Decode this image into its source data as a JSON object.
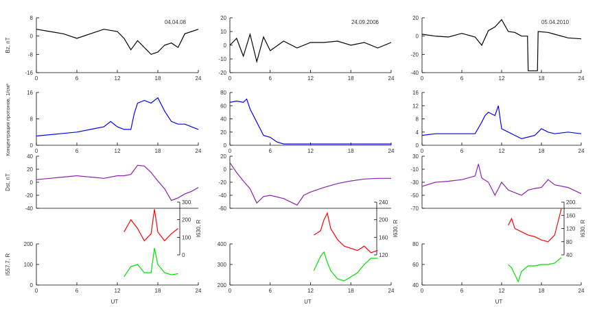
{
  "x_ticks": [
    "0",
    "6",
    "12",
    "18",
    "24"
  ],
  "xlabel": "UT",
  "ylabels": {
    "bz": "Bz, nT",
    "density": "Концентрация протонов, 1/см³",
    "dst": "Dst, nT",
    "i5577": "I557.7, R",
    "i630": "I630, R"
  },
  "colors": {
    "bz": "#000000",
    "density": "#0000ff",
    "dst": "#8b1fb0",
    "i630": "#ff0000",
    "i5577": "#00e000"
  },
  "chart_data": [
    {
      "type": "line",
      "date": "04.04.08",
      "xlim": [
        0,
        24
      ],
      "panels": {
        "bz": {
          "ylim": [
            -16,
            8
          ],
          "ticks": [
            "8",
            "0",
            "-8",
            "-16"
          ],
          "x": [
            0,
            2,
            4,
            6,
            8,
            10,
            12,
            13,
            14,
            15,
            16,
            17,
            18,
            19,
            20,
            21,
            22,
            23,
            24
          ],
          "values": [
            3,
            2,
            1,
            -1,
            1,
            3,
            2,
            -1,
            -6,
            -2,
            -5,
            -8,
            -7,
            -4,
            -3,
            -5,
            1,
            2,
            3
          ]
        },
        "density": {
          "ylim": [
            0,
            20
          ],
          "ticks": [
            "16",
            "8",
            "0"
          ],
          "x": [
            0,
            2,
            4,
            6,
            8,
            10,
            11,
            12,
            13,
            14,
            14.5,
            15,
            16,
            17,
            18,
            19,
            20,
            21,
            22,
            23,
            24
          ],
          "values": [
            3.5,
            4,
            4.5,
            5,
            6,
            7,
            9,
            7,
            6,
            6,
            12,
            16,
            17,
            16,
            18,
            13,
            9,
            8,
            8,
            7,
            6
          ]
        },
        "dst": {
          "ylim": [
            -40,
            40
          ],
          "ticks": [
            "40",
            "20",
            "0",
            "-20",
            "-40"
          ],
          "x": [
            0,
            2,
            4,
            6,
            8,
            10,
            12,
            13,
            14,
            15,
            16,
            17,
            18,
            19,
            20,
            21,
            22,
            23,
            24
          ],
          "values": [
            4,
            6,
            8,
            10,
            8,
            6,
            10,
            10,
            12,
            26,
            25,
            15,
            2,
            -10,
            -28,
            -24,
            -18,
            -14,
            -8
          ]
        },
        "i630": {
          "ylim": [
            0,
            300
          ],
          "ticks": [
            "300",
            "200",
            "100",
            "0"
          ],
          "x": [
            13,
            14,
            15,
            16,
            17,
            17.5,
            18,
            19,
            20,
            21
          ],
          "values": [
            130,
            200,
            150,
            80,
            120,
            260,
            130,
            80,
            120,
            150
          ]
        },
        "i5577": {
          "ylim": [
            0,
            200
          ],
          "ticks": [
            "200",
            "100",
            "0"
          ],
          "x": [
            13,
            14,
            15,
            16,
            17,
            17.5,
            18,
            19,
            20,
            21
          ],
          "values": [
            40,
            90,
            100,
            60,
            60,
            180,
            100,
            60,
            50,
            55
          ]
        }
      }
    },
    {
      "type": "line",
      "date": "24.09.2006",
      "xlim": [
        0,
        24
      ],
      "panels": {
        "bz": {
          "ylim": [
            -20,
            20
          ],
          "ticks": [
            "20",
            "10",
            "0",
            "-10",
            "-20"
          ],
          "x": [
            0,
            1,
            2,
            3,
            4,
            5,
            6,
            8,
            10,
            12,
            14,
            16,
            18,
            20,
            22,
            24
          ],
          "values": [
            0,
            5,
            -8,
            8,
            -12,
            6,
            -4,
            3,
            -2,
            2,
            2,
            3,
            0,
            2,
            -2,
            2
          ]
        },
        "density": {
          "ylim": [
            0,
            80
          ],
          "ticks": [
            "80",
            "60",
            "40",
            "20",
            "0"
          ],
          "x": [
            0,
            1,
            2,
            2.5,
            3,
            4,
            5,
            6,
            7,
            8,
            10,
            12,
            14,
            16,
            18,
            20,
            22,
            24
          ],
          "values": [
            65,
            67,
            65,
            70,
            55,
            35,
            15,
            12,
            5,
            2,
            2,
            2,
            2,
            2,
            2,
            2,
            2,
            2
          ]
        },
        "dst": {
          "ylim": [
            -60,
            20
          ],
          "ticks": [
            "20",
            "0",
            "-20",
            "-40",
            "-60"
          ],
          "x": [
            0,
            1,
            2,
            3,
            4,
            5,
            6,
            8,
            10,
            11,
            12,
            14,
            16,
            18,
            20,
            22,
            24
          ],
          "values": [
            10,
            -5,
            -18,
            -30,
            -52,
            -42,
            -40,
            -45,
            -55,
            -40,
            -35,
            -28,
            -22,
            -18,
            -15,
            -14,
            -14
          ]
        },
        "i630": {
          "ylim": [
            120,
            240
          ],
          "ticks": [
            "240",
            "200",
            "160",
            "120"
          ],
          "x": [
            12.5,
            13.5,
            14,
            14.5,
            15,
            16,
            17,
            18,
            19,
            20,
            21,
            22
          ],
          "values": [
            165,
            175,
            200,
            215,
            180,
            155,
            140,
            135,
            130,
            140,
            125,
            130
          ]
        },
        "i5577": {
          "ylim": [
            200,
            400
          ],
          "ticks": [
            "400",
            "300",
            "200"
          ],
          "x": [
            12.5,
            13.5,
            14,
            14.5,
            15,
            16,
            17,
            18,
            19,
            20,
            21,
            22
          ],
          "values": [
            270,
            340,
            360,
            310,
            270,
            230,
            220,
            240,
            260,
            300,
            330,
            330
          ]
        }
      }
    },
    {
      "type": "line",
      "date": "05.04.2010",
      "xlim": [
        0,
        24
      ],
      "panels": {
        "bz": {
          "ylim": [
            -40,
            20
          ],
          "ticks": [
            "20",
            "0",
            "-20",
            "-40"
          ],
          "x": [
            0,
            2,
            4,
            6,
            8,
            9,
            10,
            11,
            12,
            13,
            14,
            15,
            15.9,
            16,
            17.4,
            17.5,
            19,
            20,
            22,
            24
          ],
          "values": [
            2,
            0,
            -1,
            3,
            -1,
            -10,
            6,
            10,
            18,
            5,
            4,
            0,
            0,
            -38,
            -38,
            5,
            4,
            2,
            -2,
            -3
          ]
        },
        "density": {
          "ylim": [
            0,
            16
          ],
          "ticks": [
            "16",
            "12",
            "8",
            "4",
            "0"
          ],
          "x": [
            0,
            2,
            4,
            6,
            8,
            9,
            9.5,
            10,
            11,
            11.5,
            12,
            13,
            14,
            15,
            16,
            17,
            18,
            19,
            20,
            22,
            24
          ],
          "values": [
            3,
            3.5,
            3.5,
            3.5,
            3.5,
            7,
            9,
            10,
            9,
            12,
            5,
            4,
            3,
            2,
            2.5,
            3,
            5,
            4,
            3.5,
            4,
            3.5
          ]
        },
        "dst": {
          "ylim": [
            -70,
            30
          ],
          "ticks": [
            "30",
            "-10",
            "-30",
            "-50",
            "-70"
          ],
          "x": [
            0,
            2,
            4,
            6,
            8,
            8.5,
            9,
            10,
            11,
            12,
            13,
            14,
            15,
            16,
            17,
            18,
            19,
            20,
            22,
            24
          ],
          "values": [
            -28,
            -20,
            -18,
            -15,
            -8,
            15,
            -12,
            -20,
            -45,
            -20,
            -35,
            -40,
            -45,
            -35,
            -32,
            -30,
            -15,
            -25,
            -30,
            -42
          ]
        },
        "i630": {
          "ylim": [
            40,
            200
          ],
          "ticks": [
            "200",
            "160",
            "120",
            "80",
            "40"
          ],
          "x": [
            13,
            13.5,
            14,
            15,
            16,
            17,
            18,
            19,
            20,
            21
          ],
          "values": [
            130,
            150,
            120,
            110,
            100,
            95,
            85,
            80,
            100,
            180
          ]
        },
        "i5577": {
          "ylim": [
            40,
            100
          ],
          "ticks": [
            "80",
            "60",
            "40"
          ],
          "x": [
            13,
            13.5,
            14,
            14.5,
            15,
            16,
            17,
            18,
            19,
            20,
            21
          ],
          "values": [
            70,
            65,
            55,
            45,
            60,
            68,
            68,
            70,
            70,
            72,
            80
          ]
        }
      }
    }
  ]
}
